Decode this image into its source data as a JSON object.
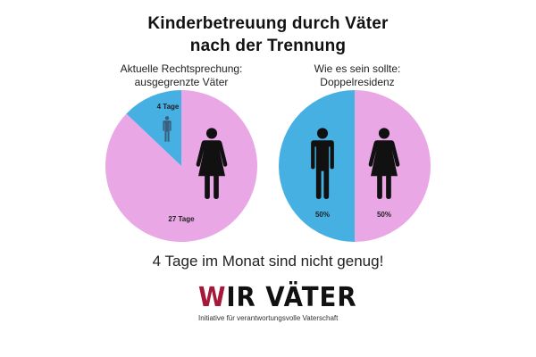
{
  "title": {
    "line1": "Kinderbetreuung durch Väter",
    "line2": "nach der Trennung"
  },
  "slogan": "4 Tage im Monat sind nicht genug!",
  "logo": {
    "initial": "W",
    "rest": "IR VÄTER",
    "subtitle": "Initiative für verantwortungsvolle Vaterschaft"
  },
  "colors": {
    "father": "#46b0e3",
    "mother": "#e9a7e6",
    "figure": "#111111",
    "logo_accent": "#a5183a"
  },
  "chart_data": [
    {
      "type": "pie",
      "title_lines": [
        "Aktuelle Rechtsprechung:",
        "ausgegrenzte Väter"
      ],
      "slices": [
        {
          "label": "4 Tage",
          "value": 4,
          "color": "#46b0e3",
          "icon": "man-icon"
        },
        {
          "label": "27 Tage",
          "value": 27,
          "color": "#e9a7e6",
          "icon": "woman-icon"
        }
      ]
    },
    {
      "type": "pie",
      "title_lines": [
        "Wie es sein sollte:",
        "Doppelresidenz"
      ],
      "slices": [
        {
          "label": "50%",
          "value": 50,
          "color": "#46b0e3",
          "icon": "man-icon"
        },
        {
          "label": "50%",
          "value": 50,
          "color": "#e9a7e6",
          "icon": "woman-icon"
        }
      ]
    }
  ]
}
